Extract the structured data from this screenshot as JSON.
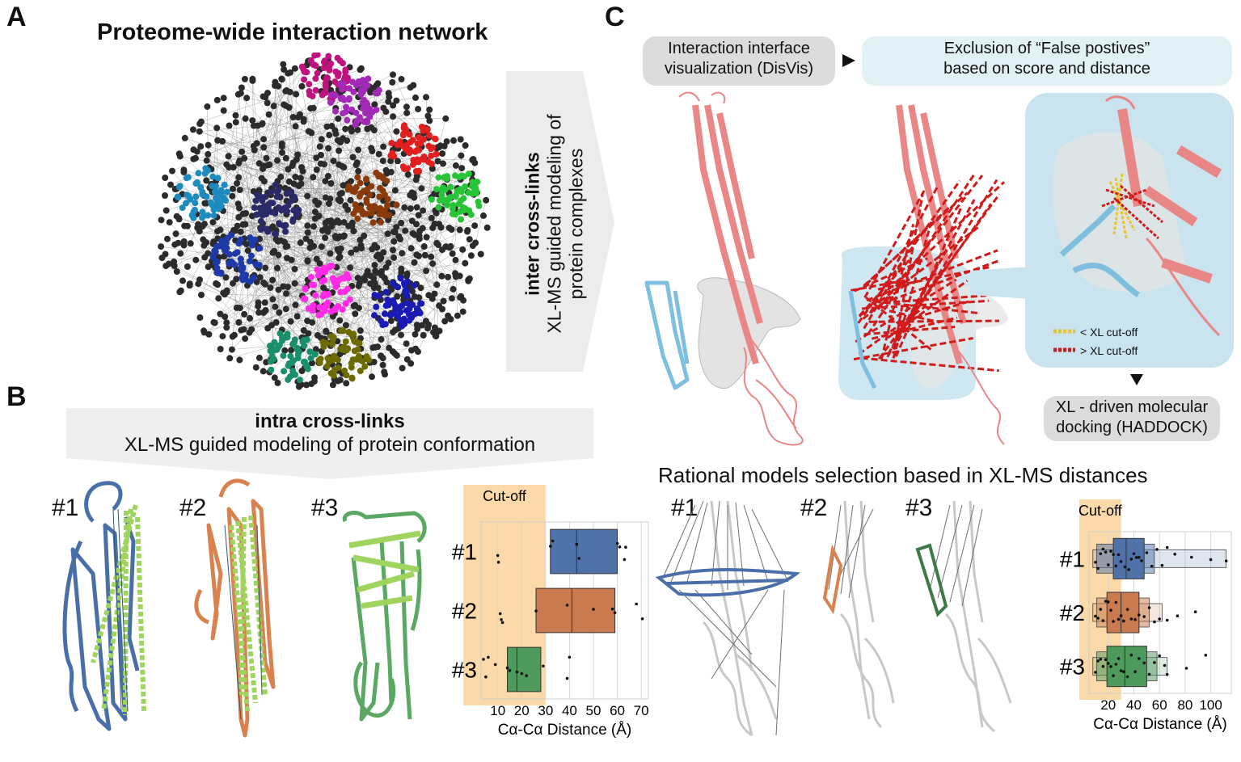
{
  "panel_labels": {
    "a": "A",
    "b": "B",
    "c": "C"
  },
  "panel_a": {
    "title": "Proteome-wide interaction network",
    "arrow_text_bold": "inter cross-links",
    "arrow_text_line2": "XL-MS guided modeling of",
    "arrow_text_line3": "protein complexes",
    "cluster_colors": [
      "#c0127f",
      "#a32ab8",
      "#1d8bbd",
      "#1d3aa8",
      "#e11f1f",
      "#26c436",
      "#ff2be6",
      "#1a1ab4",
      "#6b6b00",
      "#1a8f6b",
      "#8b3a0a",
      "#2a2a6a"
    ]
  },
  "panel_b": {
    "title_bold": "intra cross-links",
    "subtitle": "XL-MS guided modeling of protein conformation",
    "models": [
      "#1",
      "#2",
      "#3"
    ],
    "model_colors": [
      "#4a6fa8",
      "#d9824f",
      "#5aa863"
    ],
    "cutoff_label": "Cut-off",
    "xlabel": "Cα-Cα Distance (Å)"
  },
  "panel_c": {
    "step1": "Interaction interface visualization (DisVis)",
    "step1_line1": "Interaction interface",
    "step1_line2": "visualization (DisVis)",
    "step2_line1": "Exclusion of “False postives”",
    "step2_line2": "based on score and distance",
    "legend_below": "< XL cut-off",
    "legend_above": "> XL cut-off",
    "step3_line1": "XL - driven molecular",
    "step3_line2": "docking (HADDOCK)",
    "selection_title": "Rational models selection based in XL-MS distances",
    "models": [
      "#1",
      "#2",
      "#3"
    ],
    "cutoff_label": "Cut-off",
    "xlabel": "Cα-Cα Distance (Å)"
  },
  "chart_data": [
    {
      "type": "box",
      "title": "",
      "xlabel": "Cα-Cα Distance (Å)",
      "ylabel": "",
      "xlim": [
        3,
        73
      ],
      "xticks": [
        10,
        20,
        30,
        40,
        50,
        60,
        70
      ],
      "cutoff": [
        3,
        30
      ],
      "categories": [
        "#1",
        "#2",
        "#3"
      ],
      "series": [
        {
          "name": "#1",
          "color": "#4f72a8",
          "q1": 32,
          "median": 43,
          "q3": 60,
          "points": [
            10,
            10.3,
            32,
            33,
            43,
            44,
            60,
            61,
            63,
            63.5
          ]
        },
        {
          "name": "#2",
          "color": "#c97a4e",
          "q1": 26,
          "median": 41,
          "q3": 59,
          "points": [
            11,
            11.5,
            12,
            26,
            39,
            50,
            58,
            59,
            68,
            70.5
          ]
        },
        {
          "name": "#3",
          "color": "#4e9a5c",
          "q1": 14,
          "median": 18,
          "q3": 28,
          "points": [
            4,
            5,
            6,
            9,
            14,
            15,
            18,
            20,
            22,
            29,
            39,
            40
          ]
        }
      ]
    },
    {
      "type": "box",
      "title": "",
      "xlabel": "Cα-Cα Distance (Å)",
      "ylabel": "",
      "xlim": [
        5,
        116
      ],
      "xticks": [
        20,
        40,
        60,
        80,
        100
      ],
      "cutoff": [
        5,
        30
      ],
      "categories": [
        "#1",
        "#2",
        "#3"
      ],
      "series": [
        {
          "name": "#1",
          "color": "#4f72a8",
          "q1": 24,
          "median": 34,
          "q3": 48,
          "whisker_low": 8,
          "whisker_high": 112,
          "points": [
            10,
            12,
            14,
            16,
            18,
            20,
            22,
            24,
            26,
            28,
            30,
            33,
            36,
            38,
            40,
            42,
            44,
            46,
            50,
            54,
            58,
            62,
            66,
            72,
            85,
            100,
            112
          ]
        },
        {
          "name": "#2",
          "color": "#c97a4e",
          "q1": 19,
          "median": 30,
          "q3": 44,
          "whisker_low": 8,
          "whisker_high": 62,
          "points": [
            10,
            12,
            14,
            16,
            18,
            20,
            22,
            24,
            26,
            28,
            30,
            32,
            35,
            38,
            41,
            44,
            48,
            52,
            56,
            60,
            66,
            74,
            88
          ]
        },
        {
          "name": "#3",
          "color": "#4e9a5c",
          "q1": 19,
          "median": 33,
          "q3": 50,
          "whisker_low": 8,
          "whisker_high": 66,
          "points": [
            10,
            12,
            14,
            16,
            18,
            20,
            22,
            24,
            26,
            28,
            30,
            32,
            35,
            38,
            41,
            44,
            48,
            52,
            56,
            60,
            64,
            66,
            81,
            96
          ]
        }
      ]
    }
  ]
}
